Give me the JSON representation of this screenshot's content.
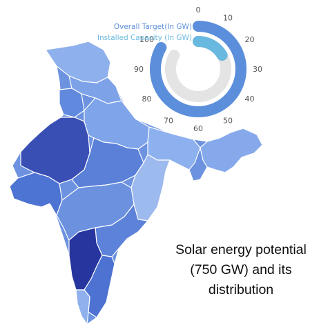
{
  "caption": {
    "line1": "Solar energy potential",
    "line2": "(750 GW) and its",
    "line3": "distribution"
  },
  "chart_data": {
    "type": "radial-bar",
    "scale_ticks": [
      "0",
      "10",
      "20",
      "30",
      "40",
      "50",
      "60",
      "70",
      "80",
      "90",
      "100"
    ],
    "scale_range": [
      0,
      100
    ],
    "series": [
      {
        "name": "Overall Target(In GW)",
        "value": 100,
        "color": "#5b8fdc"
      },
      {
        "name": "Installed Capacity (In GW)",
        "value": 20,
        "color": "#69b8e0"
      }
    ],
    "track_color": "#e4e4e4"
  },
  "map": {
    "colors": [
      "#27369e",
      "#3a57bf",
      "#4d73d3",
      "#6189dd",
      "#7ea2e8",
      "#9dbaef",
      "#b7cdf5"
    ]
  }
}
